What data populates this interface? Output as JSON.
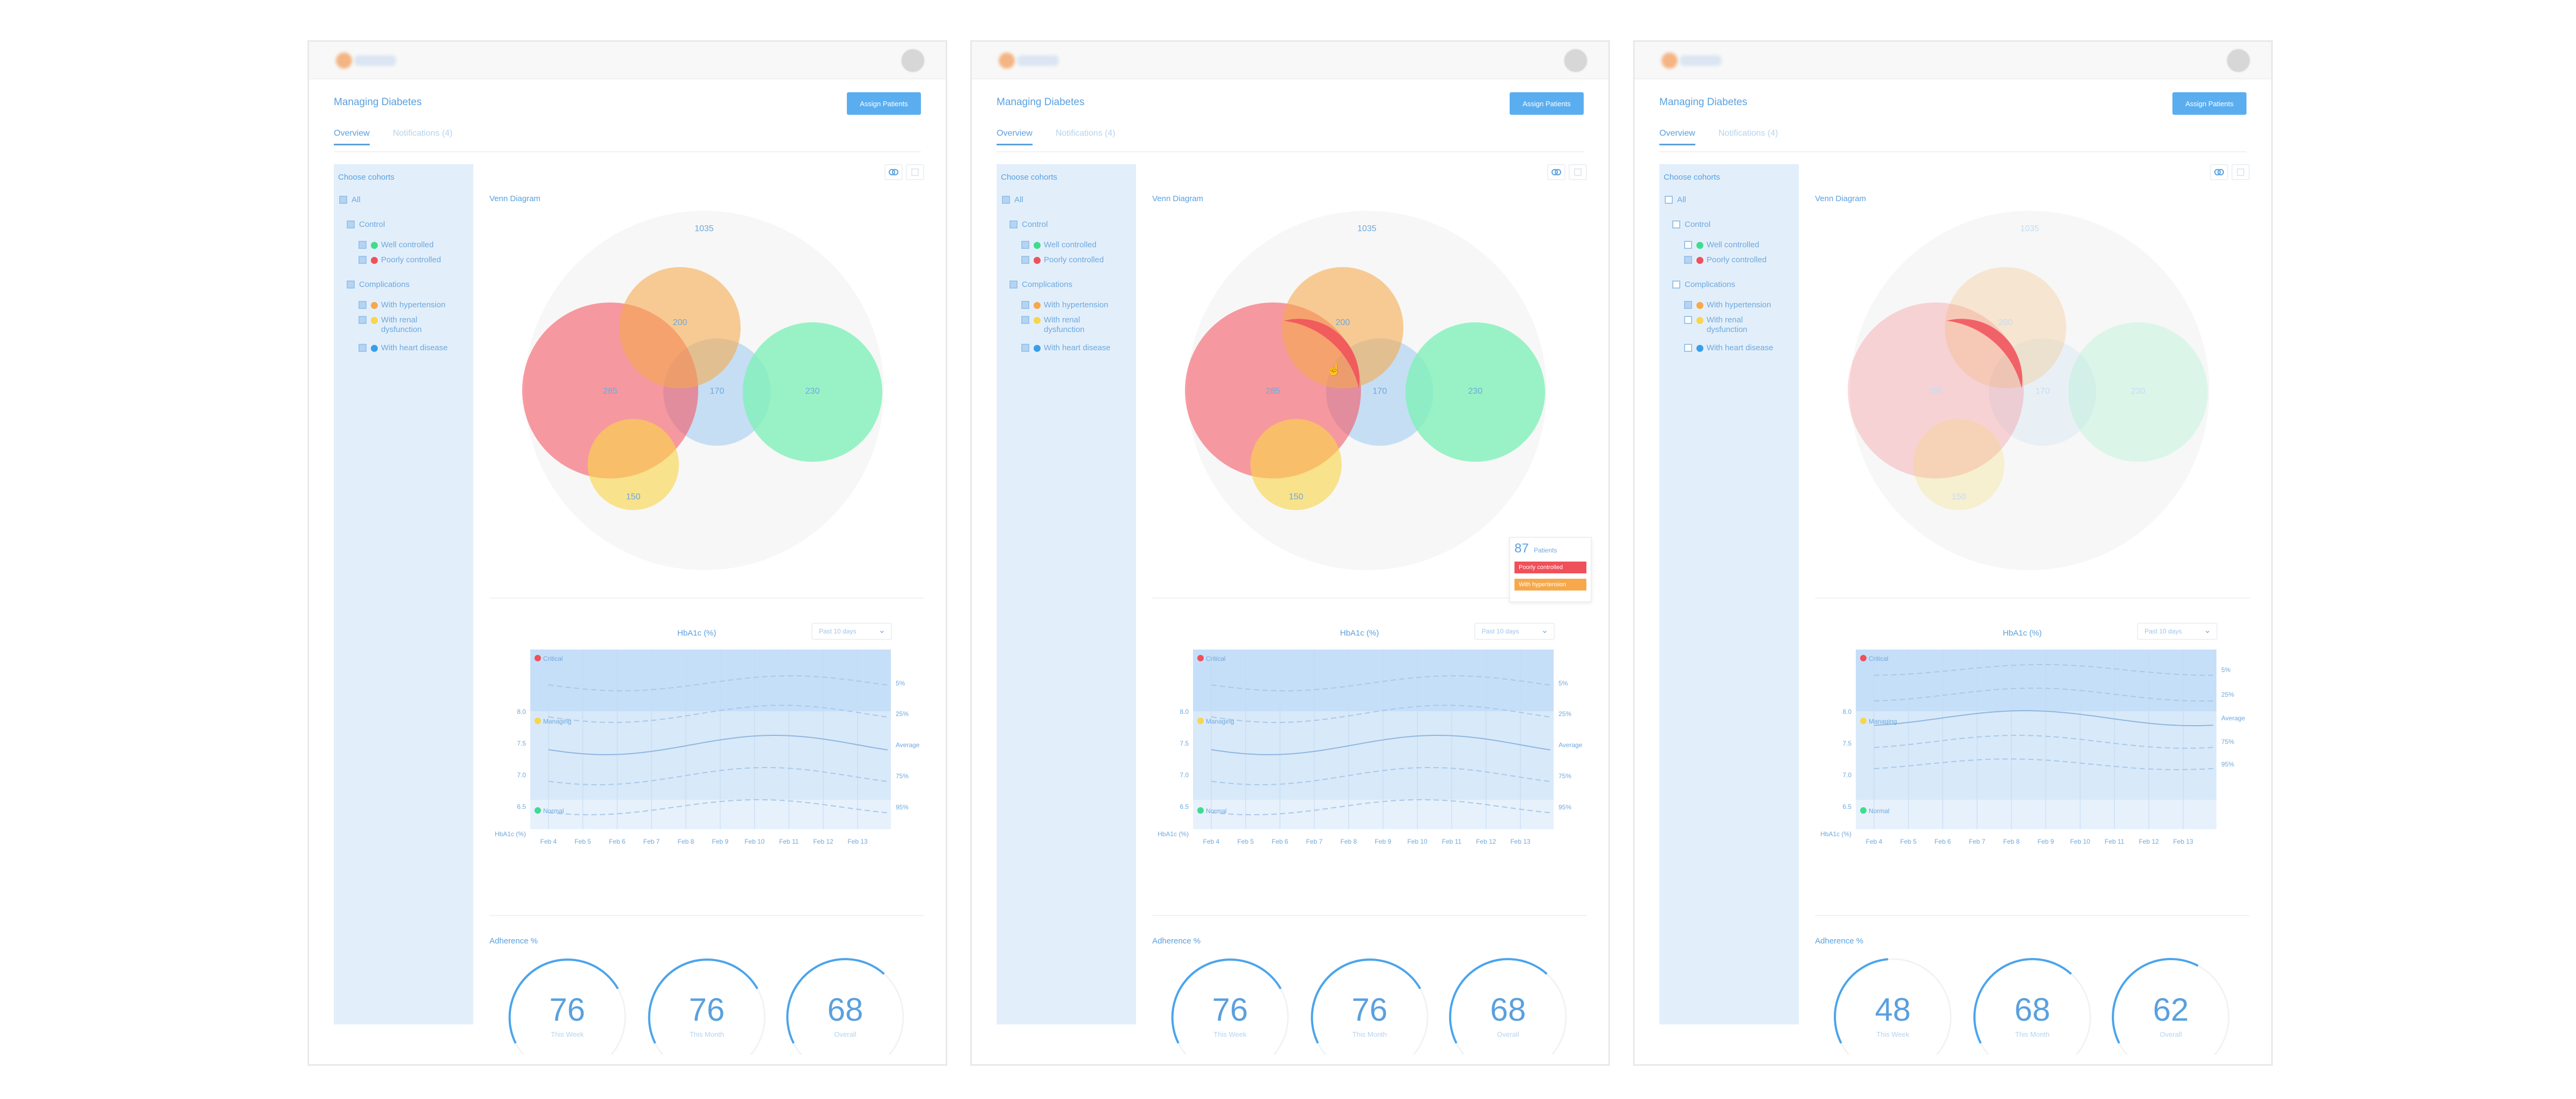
{
  "page_title": "Managing Diabetes",
  "assign_button": "Assign Patients",
  "tabs": {
    "overview": "Overview",
    "notifications": "Notifications (4)"
  },
  "cohorts": {
    "title": "Choose cohorts",
    "all": "All",
    "control": "Control",
    "well_controlled": "Well controlled",
    "poorly_controlled": "Poorly controlled",
    "complications": "Complications",
    "hypertension": "With hypertension",
    "renal_1": "With renal",
    "renal_2": "dysfunction",
    "heart": "With heart disease"
  },
  "colors": {
    "accent": "#5aa0de",
    "button": "#5aaef0",
    "red": "#f0505a",
    "orange": "#f7a84a",
    "yellow": "#f8d54a",
    "green": "#3fdc8e",
    "blue": "#3a9ee8"
  },
  "venn": {
    "label": "Venn Diagram",
    "total": "1035",
    "red": "285",
    "orange": "200",
    "blue": "170",
    "green": "230",
    "yellow": "150"
  },
  "hba1c": {
    "title": "HbA1c (%)",
    "range": "Past 10 days",
    "zone_critical": "Critical",
    "zone_managing": "Managing",
    "zone_normal": "Normal",
    "y_ticks": [
      "8.0",
      "7.5",
      "7.0",
      "6.5"
    ],
    "y_unit": "HbA1c (%)",
    "x_ticks_a": [
      "Feb 4",
      "Feb 5",
      "Feb 6",
      "Feb 7",
      "Feb 8",
      "Feb 9",
      "Feb 10",
      "Feb 11",
      "Feb 12",
      "Feb 13"
    ],
    "x_ticks_c": [
      "Feb 4",
      "Feb 5",
      "Feb 6",
      "Feb 7",
      "Feb 8",
      "Feb 9",
      "Feb 10",
      "Feb 11",
      "Feb 12",
      "Feb 13"
    ],
    "pct_labels": [
      "5%",
      "25%",
      "Average",
      "75%",
      "95%"
    ]
  },
  "adherence": {
    "title": "Adherence %",
    "cap_week": "This Week",
    "cap_month": "This Month",
    "cap_overall": "Overall",
    "panel1": [
      "76",
      "76",
      "68"
    ],
    "panel2": [
      "76",
      "76",
      "68"
    ],
    "panel3": [
      "48",
      "68",
      "62"
    ],
    "panel1_levels": [
      0.76,
      0.76,
      0.68
    ],
    "panel2_levels": [
      0.76,
      0.76,
      0.68
    ],
    "panel3_levels": [
      0.48,
      0.68,
      0.62
    ]
  },
  "tooltip": {
    "count": "87",
    "unit": "Patients",
    "tag1": "Poorly controlled",
    "tag2": "With hypertension"
  }
}
